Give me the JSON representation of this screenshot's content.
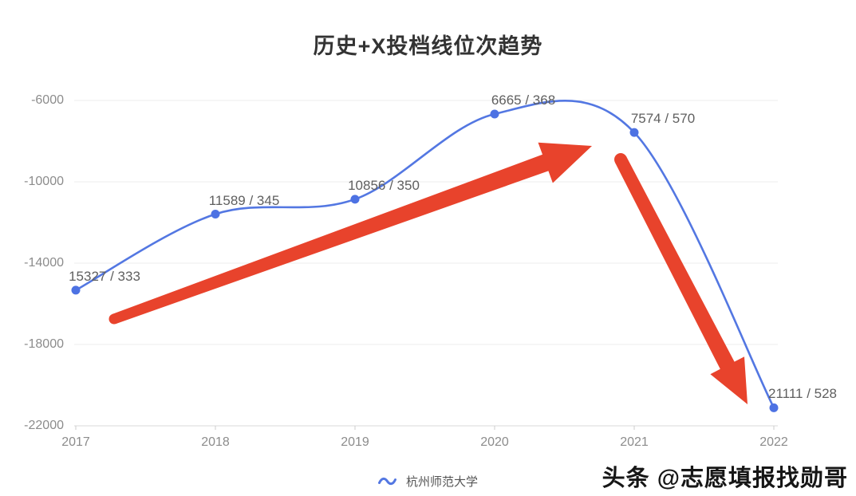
{
  "title": "历史+X投档线位次趋势",
  "legend": {
    "label": "杭州师范大学"
  },
  "watermark": "头条 @志愿填报找勋哥",
  "colors": {
    "line": "#5377e2",
    "point": "#4d72e3",
    "arrow": "#e8432c",
    "grid": "#ececec",
    "axis": "#d9d9d9",
    "tick": "#cccccc"
  },
  "chart_data": {
    "type": "line",
    "title": "历史+X投档线位次趋势",
    "categories": [
      "2017",
      "2018",
      "2019",
      "2020",
      "2021",
      "2022"
    ],
    "series": [
      {
        "name": "杭州师范大学",
        "rank": [
          15327,
          11589,
          10856,
          6665,
          7574,
          21111
        ],
        "score": [
          333,
          345,
          350,
          368,
          570,
          528
        ],
        "plotted_y": [
          -15327,
          -11589,
          -10856,
          -6665,
          -7574,
          -21111
        ]
      }
    ],
    "point_labels": [
      "15327 / 333",
      "11589 / 345",
      "10856 / 350",
      "6665 / 368",
      "7574 / 570",
      "21111 / 528"
    ],
    "ytick_labels": [
      "-6000",
      "-10000",
      "-14000",
      "-18000",
      "-22000"
    ],
    "ytick_values": [
      -6000,
      -10000,
      -14000,
      -18000,
      -22000
    ],
    "ylim": [
      -23500,
      -5000
    ],
    "xlabel": "",
    "ylabel": "",
    "grid": true,
    "smooth": true,
    "legend_position": "bottom",
    "annotations": [
      {
        "type": "arrow",
        "name": "trend-up-arrow",
        "from_year": "2017",
        "to_year": "2021",
        "direction": "up-right",
        "color": "#e8432c"
      },
      {
        "type": "arrow",
        "name": "trend-down-arrow",
        "from_year": "2021",
        "to_year": "2022",
        "direction": "down-right",
        "color": "#e8432c"
      }
    ]
  }
}
